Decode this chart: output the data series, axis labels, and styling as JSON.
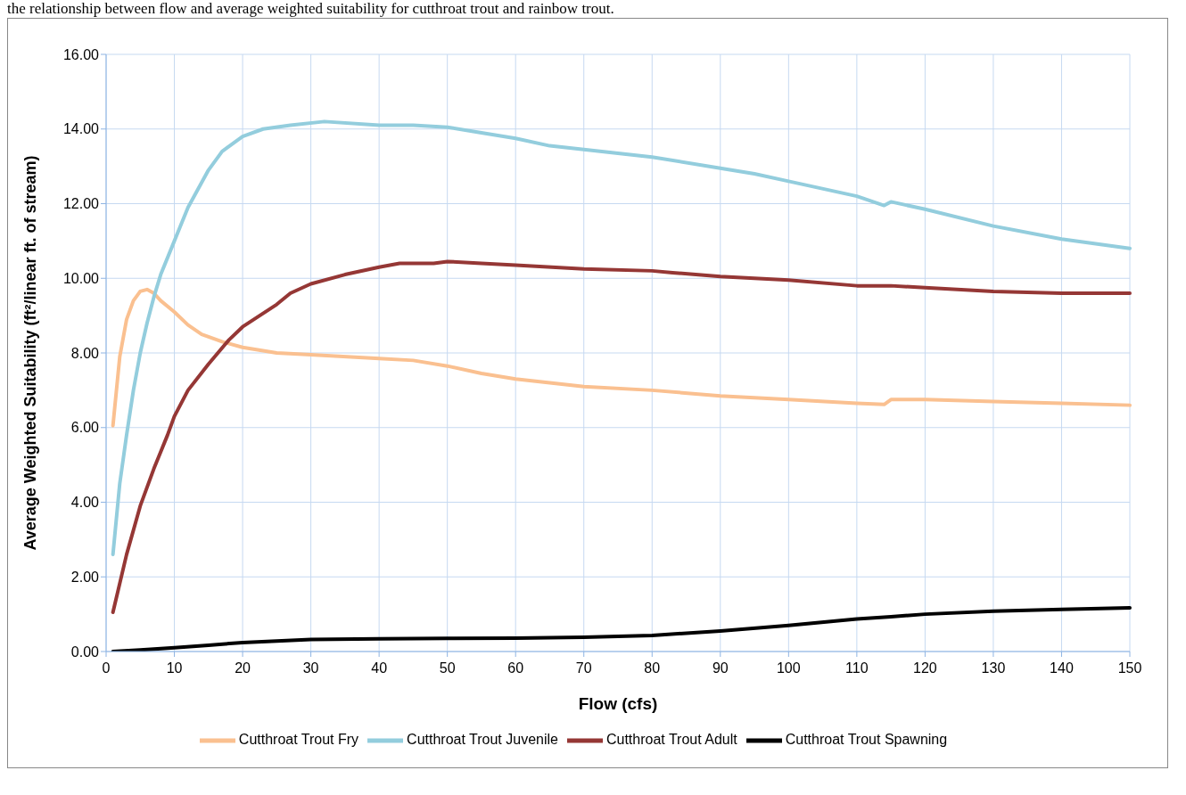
{
  "chart_data": {
    "type": "line",
    "annotations": [
      "the relationship between flow and average weighted suitability for cutthroat trout and rainbow trout."
    ],
    "xlabel": "Flow (cfs)",
    "ylabel": "Average Weighted Suitability (ft²/linear ft. of stream)",
    "xlim": [
      0,
      150
    ],
    "xticks": [
      0,
      10,
      20,
      30,
      40,
      50,
      60,
      70,
      80,
      90,
      100,
      110,
      120,
      130,
      140,
      150
    ],
    "ylim": [
      0,
      16
    ],
    "yticks": [
      {
        "value": 0,
        "label": "0.00"
      },
      {
        "value": 2,
        "label": "2.00"
      },
      {
        "value": 4,
        "label": "4.00"
      },
      {
        "value": 6,
        "label": "6.00"
      },
      {
        "value": 8,
        "label": "8.00"
      },
      {
        "value": 10,
        "label": "10.00"
      },
      {
        "value": 12,
        "label": "12.00"
      },
      {
        "value": 14,
        "label": "14.00"
      },
      {
        "value": 16,
        "label": "16.00"
      }
    ],
    "grid": true,
    "legend": "bottom",
    "marker": "none",
    "line_style": "solid",
    "series": [
      {
        "name": "Cutthroat Trout Fry",
        "color": "#fac090",
        "x": [
          1,
          2,
          3,
          4,
          5,
          6,
          7,
          8,
          10,
          12,
          14,
          17,
          20,
          25,
          30,
          40,
          45,
          50,
          55,
          60,
          65,
          70,
          80,
          90,
          100,
          110,
          114,
          115,
          120,
          130,
          140,
          150
        ],
        "values": [
          6.05,
          7.9,
          8.9,
          9.4,
          9.65,
          9.7,
          9.6,
          9.4,
          9.1,
          8.75,
          8.5,
          8.3,
          8.15,
          8.0,
          7.95,
          7.85,
          7.8,
          7.65,
          7.45,
          7.3,
          7.2,
          7.1,
          7.0,
          6.85,
          6.75,
          6.65,
          6.62,
          6.75,
          6.75,
          6.7,
          6.65,
          6.6
        ]
      },
      {
        "name": "Cutthroat Trout Juvenile",
        "color": "#93cddd",
        "x": [
          1,
          2,
          3,
          4,
          5,
          6,
          7,
          8,
          10,
          12,
          15,
          17,
          20,
          23,
          27,
          32,
          40,
          45,
          50,
          55,
          60,
          65,
          70,
          80,
          90,
          95,
          100,
          110,
          114,
          115,
          120,
          130,
          140,
          150
        ],
        "values": [
          2.6,
          4.5,
          5.8,
          7.0,
          8.0,
          8.8,
          9.5,
          10.1,
          11.0,
          11.9,
          12.9,
          13.4,
          13.8,
          14.0,
          14.1,
          14.2,
          14.1,
          14.1,
          14.05,
          13.9,
          13.75,
          13.55,
          13.45,
          13.25,
          12.95,
          12.8,
          12.6,
          12.2,
          11.95,
          12.05,
          11.85,
          11.4,
          11.05,
          10.8
        ]
      },
      {
        "name": "Cutthroat Trout Adult",
        "color": "#953735",
        "x": [
          1,
          3,
          5,
          7,
          9,
          10,
          12,
          15,
          18,
          20,
          25,
          27,
          30,
          35,
          40,
          43,
          48,
          50,
          55,
          60,
          70,
          80,
          83,
          90,
          100,
          110,
          115,
          120,
          130,
          140,
          150
        ],
        "values": [
          1.05,
          2.6,
          3.9,
          4.9,
          5.8,
          6.3,
          7.0,
          7.7,
          8.35,
          8.7,
          9.3,
          9.6,
          9.85,
          10.1,
          10.3,
          10.4,
          10.4,
          10.45,
          10.4,
          10.35,
          10.25,
          10.2,
          10.15,
          10.05,
          9.95,
          9.8,
          9.8,
          9.75,
          9.65,
          9.6,
          9.6
        ]
      },
      {
        "name": "Cutthroat Trout Spawning",
        "color": "#000000",
        "x": [
          1,
          5,
          10,
          15,
          20,
          25,
          30,
          40,
          50,
          60,
          70,
          80,
          90,
          100,
          110,
          115,
          120,
          130,
          140,
          150
        ],
        "values": [
          0.0,
          0.04,
          0.1,
          0.17,
          0.24,
          0.28,
          0.32,
          0.34,
          0.35,
          0.36,
          0.38,
          0.43,
          0.55,
          0.7,
          0.87,
          0.93,
          1.0,
          1.08,
          1.13,
          1.17
        ]
      }
    ]
  }
}
